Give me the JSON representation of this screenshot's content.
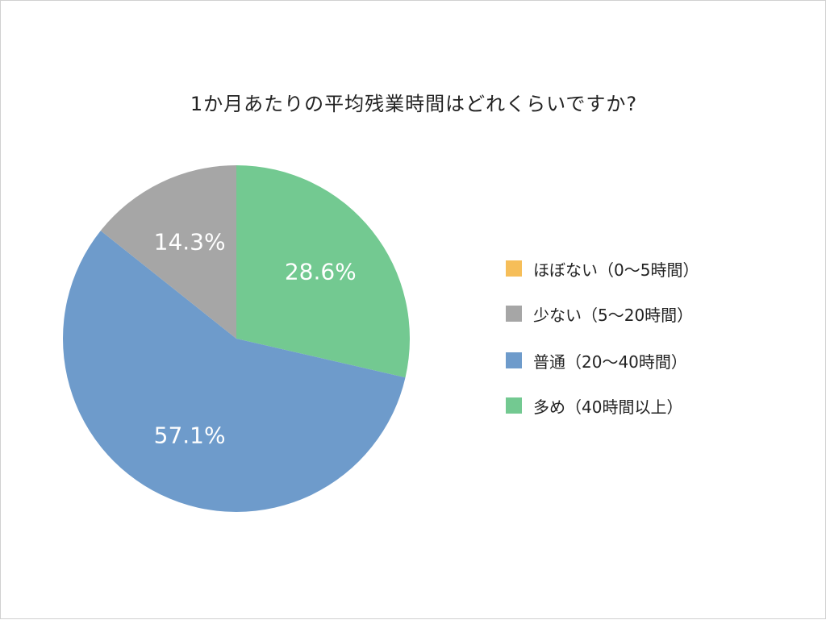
{
  "chart_data": {
    "type": "pie",
    "title": "1か月あたりの平均残業時間はどれくらいですか?",
    "slices": [
      {
        "label": "ほぼない（0〜5時間）",
        "value": 0.0,
        "color": "#F6BE59",
        "data_label": ""
      },
      {
        "label": "少ない（5〜20時間）",
        "value": 14.3,
        "color": "#A6A6A6",
        "data_label": "14.3%"
      },
      {
        "label": "普通（20〜40時間）",
        "value": 57.1,
        "color": "#6E9BCB",
        "data_label": "57.1%"
      },
      {
        "label": "多め（40時間以上）",
        "value": 28.6,
        "color": "#73C991",
        "data_label": "28.6%"
      }
    ],
    "start": "12 o'clock",
    "direction": "clockwise",
    "slice_order_clockwise": [
      "多め（40時間以上）",
      "普通（20〜40時間）",
      "少ない（5〜20時間）"
    ],
    "legend_position": "right"
  }
}
